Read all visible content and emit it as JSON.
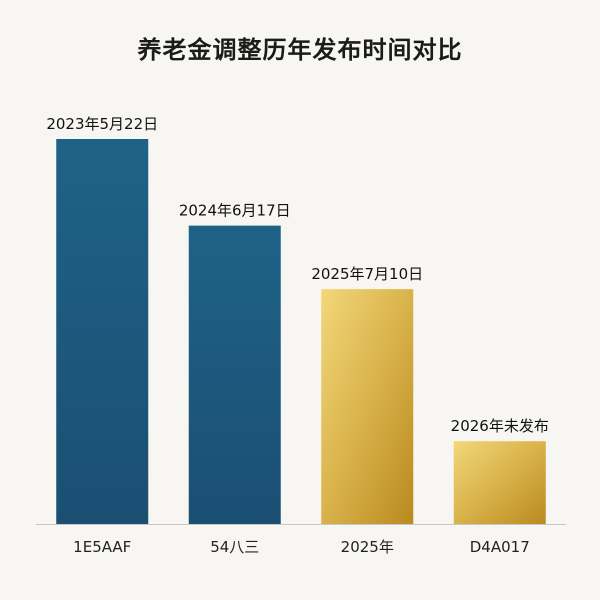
{
  "chart_data": {
    "type": "bar",
    "title": "养老金调整历年发布时间对比",
    "categories": [
      "1E5AAF",
      "54八三",
      "2025年",
      "D4A017"
    ],
    "values": [
      100,
      77.5,
      61,
      21.5
    ],
    "data_labels": [
      "2023年5月22日",
      "2024年6月17日",
      "2025年7月10日",
      "2026年未发布"
    ],
    "ylim": [
      0,
      100
    ],
    "grid": false,
    "colors": {
      "blue": "#1e5a7e",
      "gold": "#d4a017",
      "baseline": "#c8c8c8",
      "background": "#f7f6f2"
    },
    "bar_colors": [
      "blue",
      "blue",
      "gold",
      "gold"
    ]
  }
}
